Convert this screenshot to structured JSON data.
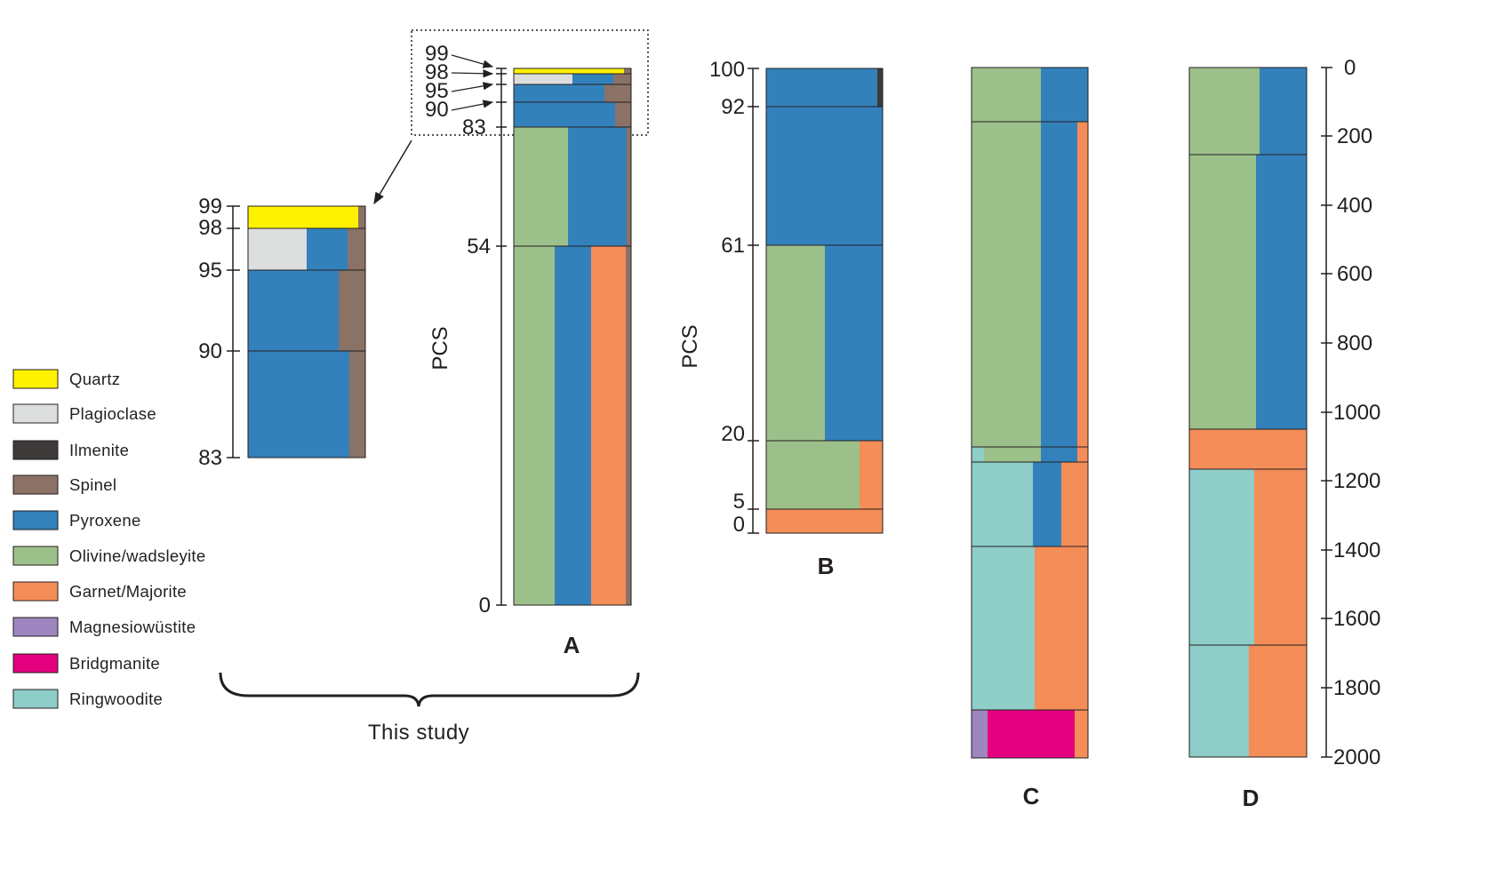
{
  "colors": {
    "quartz": "#fff200",
    "plagioclase": "#dcdddd",
    "ilmenite": "#3e3a39",
    "spinel": "#8b7266",
    "pyroxene": "#3381bb",
    "olivine": "#9cc08a",
    "garnet": "#f48d58",
    "magnesiowustite": "#9d86bf",
    "bridgmanite": "#e4007f",
    "ringwoodite": "#8ecdc8",
    "line": "#231f20"
  },
  "legend": [
    {
      "key": "quartz",
      "label": "Quartz"
    },
    {
      "key": "plagioclase",
      "label": "Plagioclase"
    },
    {
      "key": "ilmenite",
      "label": "Ilmenite"
    },
    {
      "key": "spinel",
      "label": "Spinel"
    },
    {
      "key": "pyroxene",
      "label": "Pyroxene"
    },
    {
      "key": "olivine",
      "label": "Olivine/wadsleyite"
    },
    {
      "key": "garnet",
      "label": "Garnet/Majorite"
    },
    {
      "key": "magnesiowustite",
      "label": "Magnesiowüstite"
    },
    {
      "key": "bridgmanite",
      "label": "Bridgmanite"
    },
    {
      "key": "ringwoodite",
      "label": "Ringwoodite"
    }
  ],
  "panel_a": {
    "letter": "A",
    "axis_label": "PCS",
    "ticks": [
      "99",
      "98",
      "95",
      "90",
      "83",
      "54",
      "0"
    ],
    "zoom_ticks": [
      "99",
      "98",
      "95",
      "90",
      "83"
    ]
  },
  "panel_b": {
    "letter": "B",
    "axis_label": "PCS",
    "ticks": [
      "100",
      "92",
      "61",
      "20",
      "5",
      "0"
    ]
  },
  "panel_c": {
    "letter": "C"
  },
  "panel_d": {
    "letter": "D"
  },
  "depth_axis": {
    "ticks": [
      "0",
      "200",
      "400",
      "600",
      "800",
      "1000",
      "1200",
      "1400",
      "1600",
      "1800",
      "2000"
    ]
  },
  "caption": "This study"
}
